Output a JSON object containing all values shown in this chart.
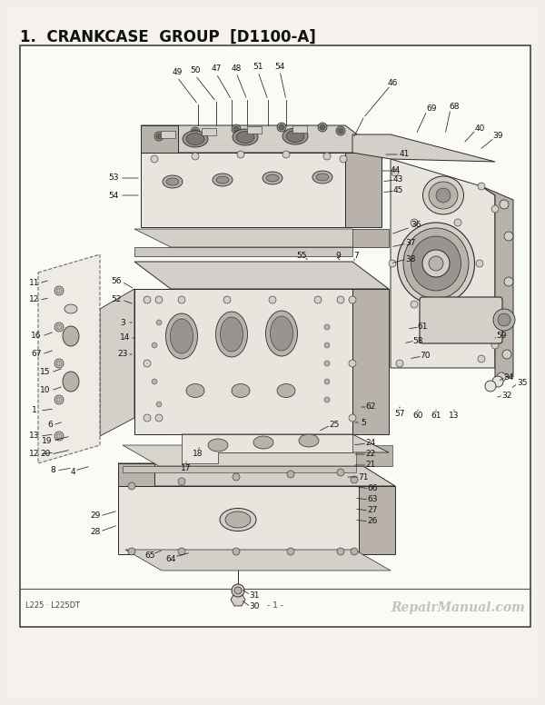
{
  "title": "1.  CRANKCASE  GROUP  [D1100-A]",
  "title_fontsize": 12,
  "background_color": "#f0ede8",
  "page_bg": "#f5f2ed",
  "diagram_bg": "#f8f6f2",
  "border_color": "#444444",
  "watermark_text": "RepairManual.com",
  "footer_left": "L225 · L225DT",
  "figsize": [
    6.0,
    7.76
  ],
  "dpi": 100,
  "engine_line_color": "#2a2a2a",
  "engine_fill_light": "#e8e4de",
  "engine_fill_mid": "#d4cfc8",
  "engine_fill_dark": "#b8b2aa",
  "engine_fill_darker": "#9a9490"
}
